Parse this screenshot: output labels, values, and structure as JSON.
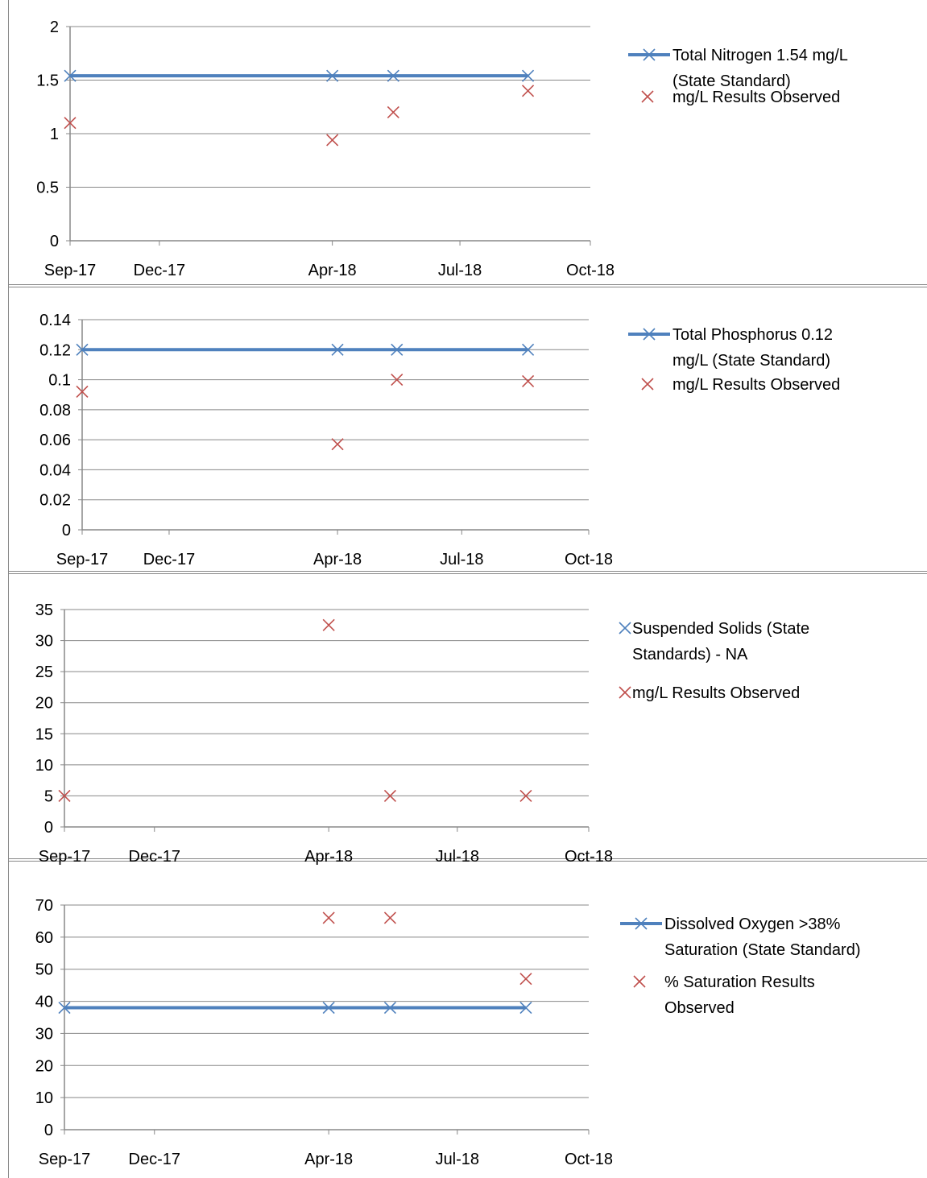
{
  "colors": {
    "standard_line": "#4F81BD",
    "observed_marker": "#C0504D",
    "gridline": "#888888",
    "axis": "#888888",
    "frame": "#888888"
  },
  "chart_data": [
    {
      "type": "line",
      "x_ticks": [
        "Sep-17",
        "Dec-17",
        "Apr-18",
        "Jul-18",
        "Oct-18"
      ],
      "x_range": [
        "Sep-17",
        "Oct-18"
      ],
      "x": [
        "Sep-17",
        "Apr-18",
        "May-18",
        "Aug-18"
      ],
      "ylim": [
        0,
        2
      ],
      "y_ticks": [
        "0",
        "0.5",
        "1",
        "1.5",
        "2"
      ],
      "grid": true,
      "legend_position": "right",
      "series": [
        {
          "name": "Total Nitrogen  1.54 mg/L (State Standard)",
          "legend_lines": [
            "Total Nitrogen  1.54 mg/L",
            "(State Standard)"
          ],
          "style": "line-x",
          "values": [
            1.54,
            1.54,
            1.54,
            1.54
          ]
        },
        {
          "name": "mg/L Results Observed",
          "legend_lines": [
            "mg/L Results Observed"
          ],
          "style": "x",
          "values": [
            1.1,
            0.94,
            1.2,
            1.4
          ]
        }
      ]
    },
    {
      "type": "line",
      "x_ticks": [
        "Sep-17",
        "Dec-17",
        "Apr-18",
        "Jul-18",
        "Oct-18"
      ],
      "x_range": [
        "Sep-17",
        "Oct-18"
      ],
      "x": [
        "Sep-17",
        "Apr-18",
        "May-18",
        "Aug-18"
      ],
      "ylim": [
        0,
        0.14
      ],
      "y_ticks": [
        "0",
        "0.02",
        "0.04",
        "0.06",
        "0.08",
        "0.1",
        "0.12",
        "0.14"
      ],
      "grid": true,
      "legend_position": "right",
      "series": [
        {
          "name": "Total Phosphorus  0.12 mg/L (State Standard)",
          "legend_lines": [
            "Total Phosphorus  0.12",
            "mg/L (State Standard)"
          ],
          "style": "line-x",
          "values": [
            0.12,
            0.12,
            0.12,
            0.12
          ]
        },
        {
          "name": "mg/L Results Observed",
          "legend_lines": [
            "mg/L Results Observed"
          ],
          "style": "x",
          "values": [
            0.092,
            0.057,
            0.1,
            0.099
          ]
        }
      ]
    },
    {
      "type": "scatter",
      "x_ticks": [
        "Sep-17",
        "Dec-17",
        "Apr-18",
        "Jul-18",
        "Oct-18"
      ],
      "x_range": [
        "Sep-17",
        "Oct-18"
      ],
      "x": [
        "Sep-17",
        "Apr-18",
        "May-18",
        "Aug-18"
      ],
      "ylim": [
        0,
        35
      ],
      "y_ticks": [
        "0",
        "5",
        "10",
        "15",
        "20",
        "25",
        "30",
        "35"
      ],
      "grid": true,
      "legend_position": "right",
      "series": [
        {
          "name": "Suspended Solids (State Standards) - NA",
          "legend_lines": [
            "Suspended Solids (State",
            "Standards) - NA"
          ],
          "style": "x-blue",
          "values": []
        },
        {
          "name": "mg/L Results Observed",
          "legend_lines": [
            "mg/L Results Observed"
          ],
          "style": "x",
          "values": [
            5,
            32.5,
            5,
            5
          ]
        }
      ]
    },
    {
      "type": "line",
      "x_ticks": [
        "Sep-17",
        "Dec-17",
        "Apr-18",
        "Jul-18",
        "Oct-18"
      ],
      "x_range": [
        "Sep-17",
        "Oct-18"
      ],
      "x": [
        "Sep-17",
        "Apr-18",
        "May-18",
        "Aug-18"
      ],
      "ylim": [
        0,
        70
      ],
      "y_ticks": [
        "0",
        "10",
        "20",
        "30",
        "40",
        "50",
        "60",
        "70"
      ],
      "grid": true,
      "legend_position": "right",
      "series": [
        {
          "name": "Dissolved Oxygen >38% Saturation (State Standard)",
          "legend_lines": [
            "Dissolved Oxygen >38%",
            "Saturation (State Standard)"
          ],
          "style": "line-x",
          "values": [
            38,
            38,
            38,
            38
          ]
        },
        {
          "name": "% Saturation Results Observed",
          "legend_lines": [
            "% Saturation Results",
            "Observed"
          ],
          "style": "x",
          "values": [
            null,
            66,
            66,
            47
          ]
        }
      ]
    }
  ]
}
